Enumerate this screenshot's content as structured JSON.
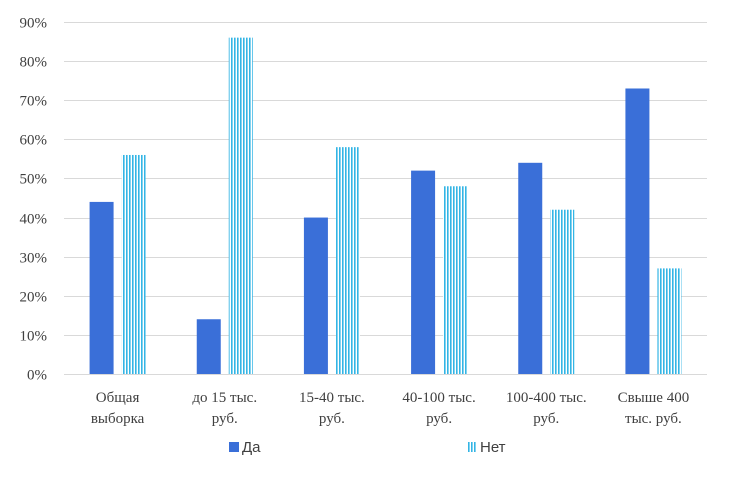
{
  "chart_data": {
    "type": "bar",
    "categories": [
      [
        "Общая",
        "выборка"
      ],
      [
        "до 15 тыс.",
        "руб."
      ],
      [
        "15-40 тыс.",
        "руб."
      ],
      [
        "40-100 тыс.",
        "руб."
      ],
      [
        "100-400 тыс.",
        "руб."
      ],
      [
        "Свыше 400",
        "тыс. руб."
      ]
    ],
    "series": [
      {
        "name": "Да",
        "values": [
          44,
          14,
          40,
          52,
          54,
          73
        ],
        "color": "#3a6fd8",
        "pattern": "solid"
      },
      {
        "name": "Нет",
        "values": [
          56,
          86,
          58,
          48,
          42,
          27
        ],
        "color": "#33b5e5",
        "pattern": "vertical-stripes"
      }
    ],
    "ylim": [
      0,
      90
    ],
    "yticks": [
      0,
      10,
      20,
      30,
      40,
      50,
      60,
      70,
      80,
      90
    ],
    "ytick_labels": [
      "0%",
      "10%",
      "20%",
      "30%",
      "40%",
      "50%",
      "60%",
      "70%",
      "80%",
      "90%"
    ],
    "grid": true,
    "legend_position": "bottom",
    "title": "",
    "xlabel": "",
    "ylabel": ""
  }
}
